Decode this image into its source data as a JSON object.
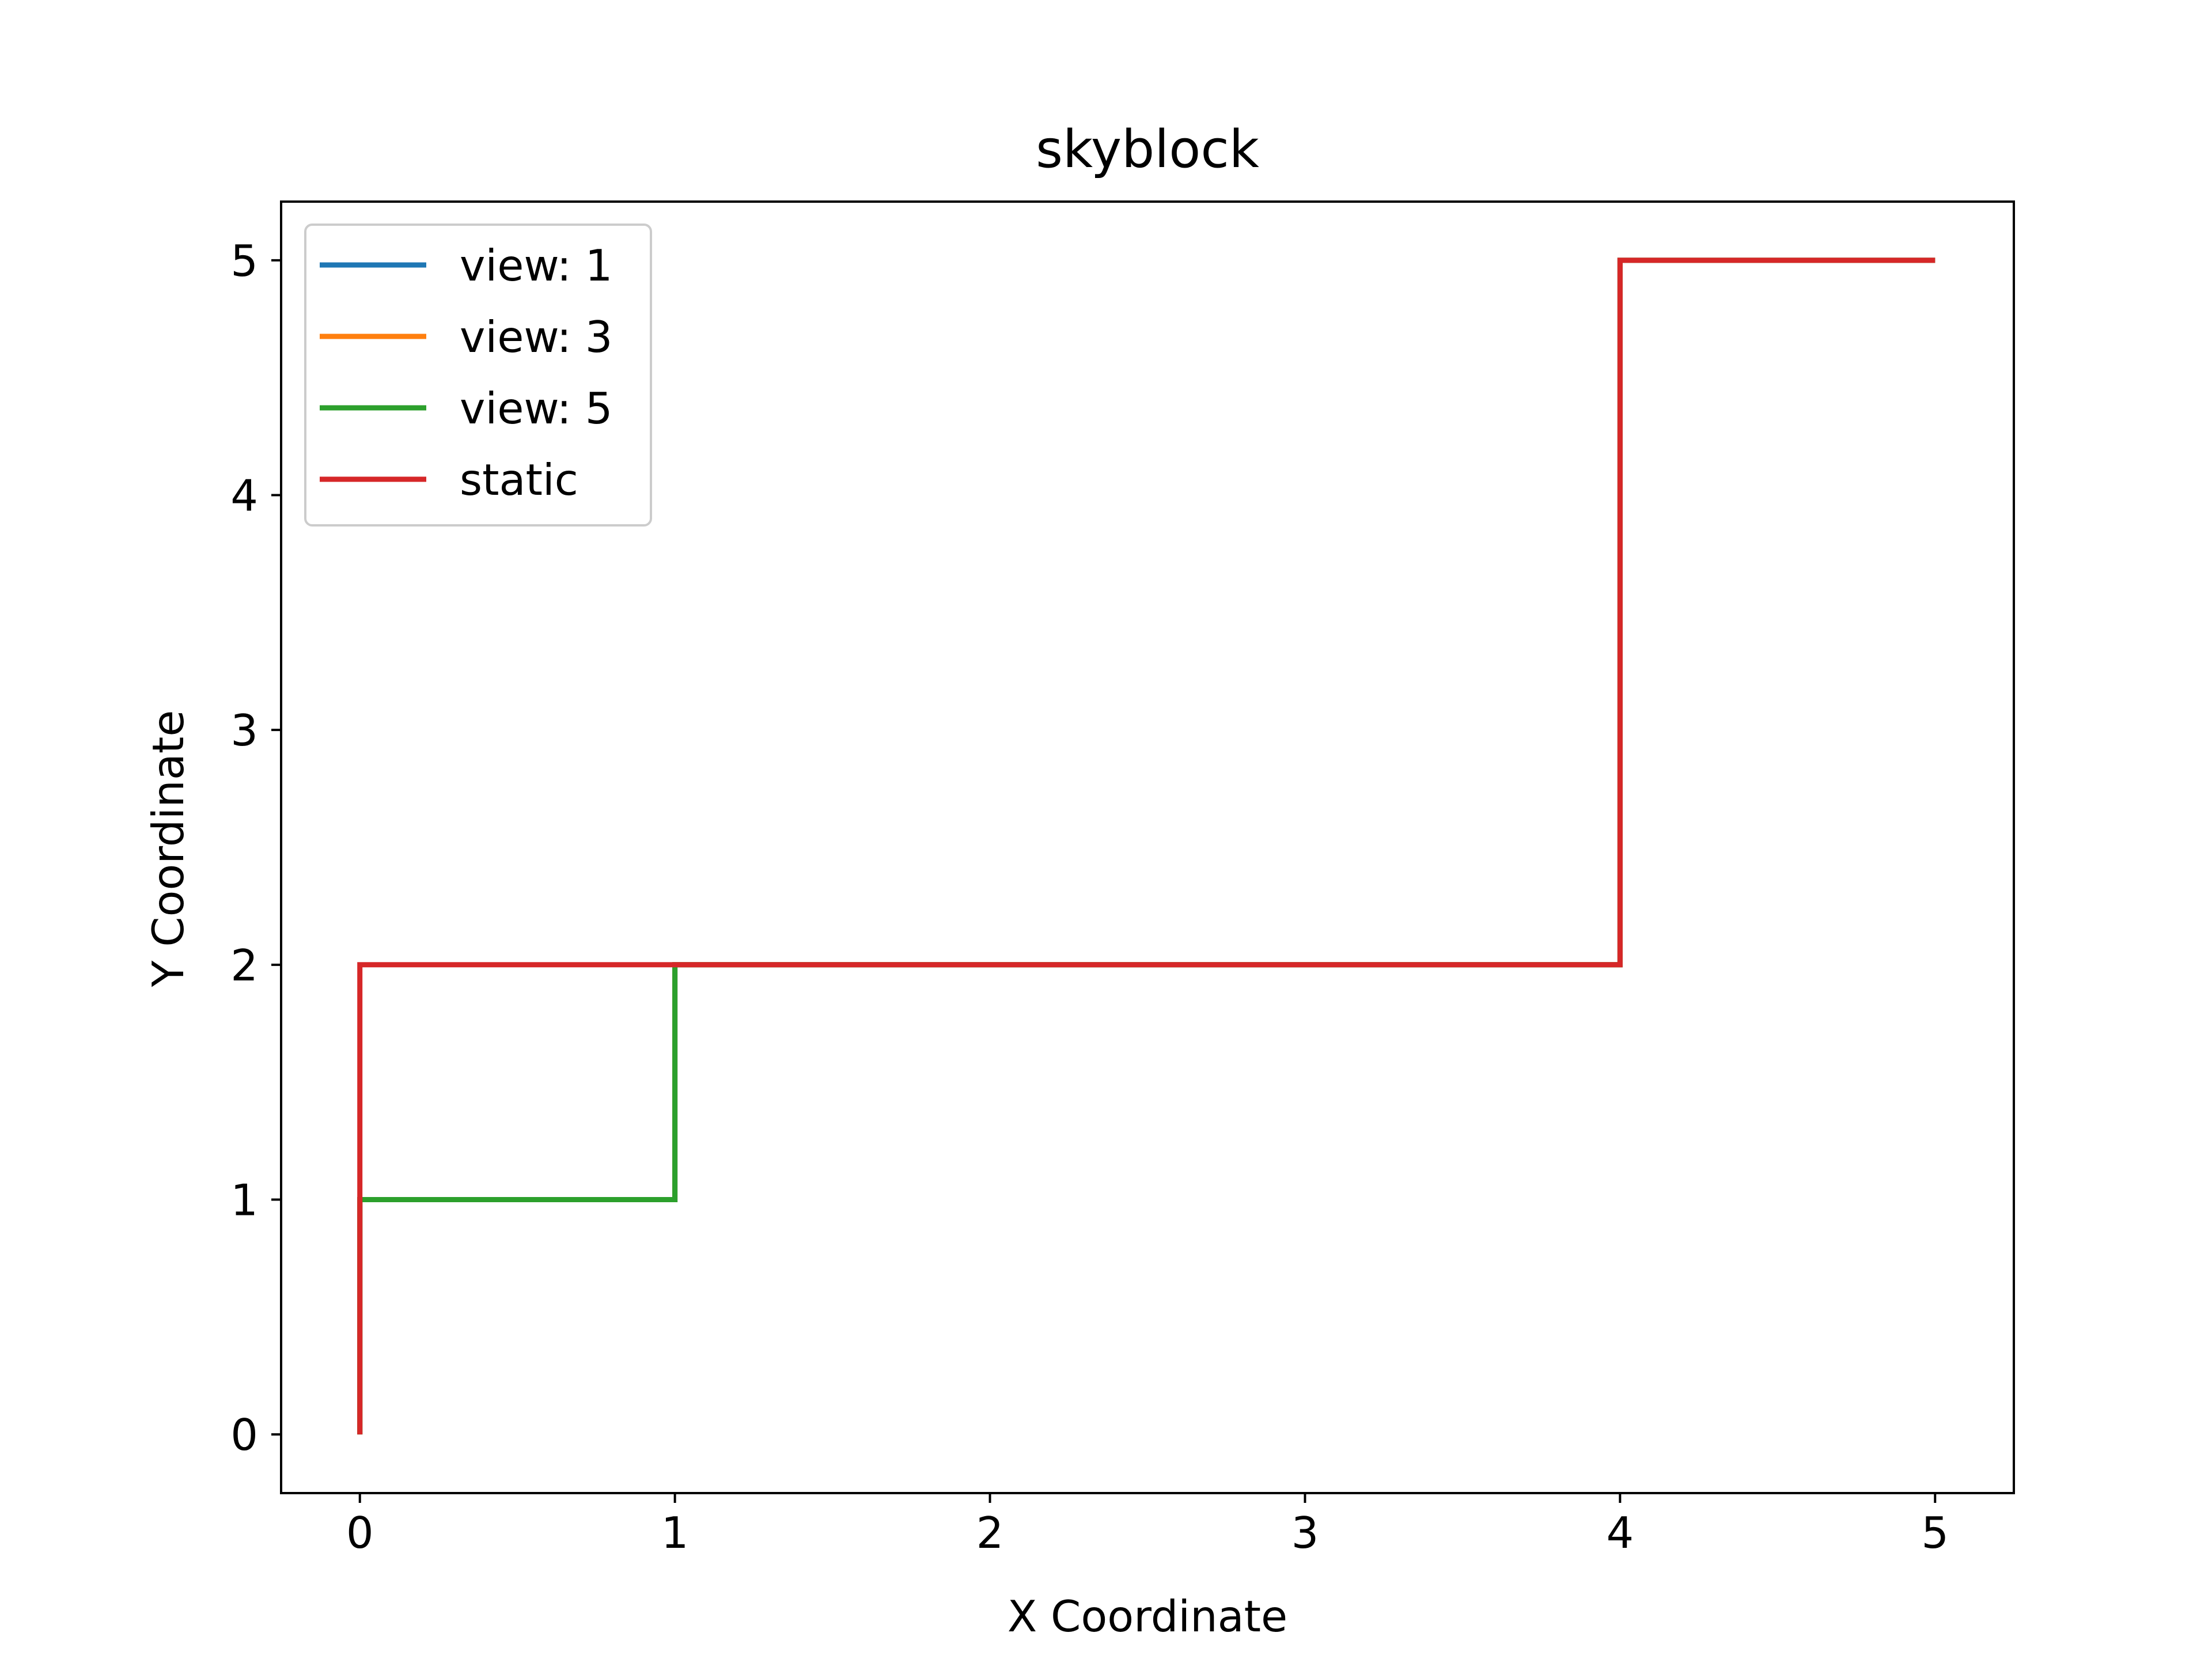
{
  "chart_data": {
    "type": "line",
    "title": "skyblock",
    "xlabel": "X Coordinate",
    "ylabel": "Y Coordinate",
    "xlim": [
      -0.25,
      5.25
    ],
    "ylim": [
      -0.25,
      5.25
    ],
    "xticks": [
      0,
      1,
      2,
      3,
      4,
      5
    ],
    "yticks": [
      0,
      1,
      2,
      3,
      4,
      5
    ],
    "grid": false,
    "legend_position": "top-left",
    "series": [
      {
        "name": "view: 1",
        "color": "#1f77b4",
        "points": [
          [
            0,
            0
          ],
          [
            0,
            1
          ],
          [
            1,
            1
          ],
          [
            1,
            2
          ],
          [
            4,
            2
          ],
          [
            4,
            5
          ],
          [
            5,
            5
          ]
        ]
      },
      {
        "name": "view: 3",
        "color": "#ff7f0e",
        "points": [
          [
            0,
            0
          ],
          [
            0,
            1
          ],
          [
            1,
            1
          ],
          [
            1,
            2
          ],
          [
            4,
            2
          ],
          [
            4,
            5
          ],
          [
            5,
            5
          ]
        ]
      },
      {
        "name": "view: 5",
        "color": "#2ca02c",
        "points": [
          [
            0,
            0
          ],
          [
            0,
            1
          ],
          [
            1,
            1
          ],
          [
            1,
            2
          ],
          [
            4,
            2
          ],
          [
            4,
            5
          ],
          [
            5,
            5
          ]
        ]
      },
      {
        "name": "static",
        "color": "#d62728",
        "points": [
          [
            0,
            0
          ],
          [
            0,
            2
          ],
          [
            4,
            2
          ],
          [
            4,
            5
          ],
          [
            5,
            5
          ]
        ]
      }
    ]
  }
}
